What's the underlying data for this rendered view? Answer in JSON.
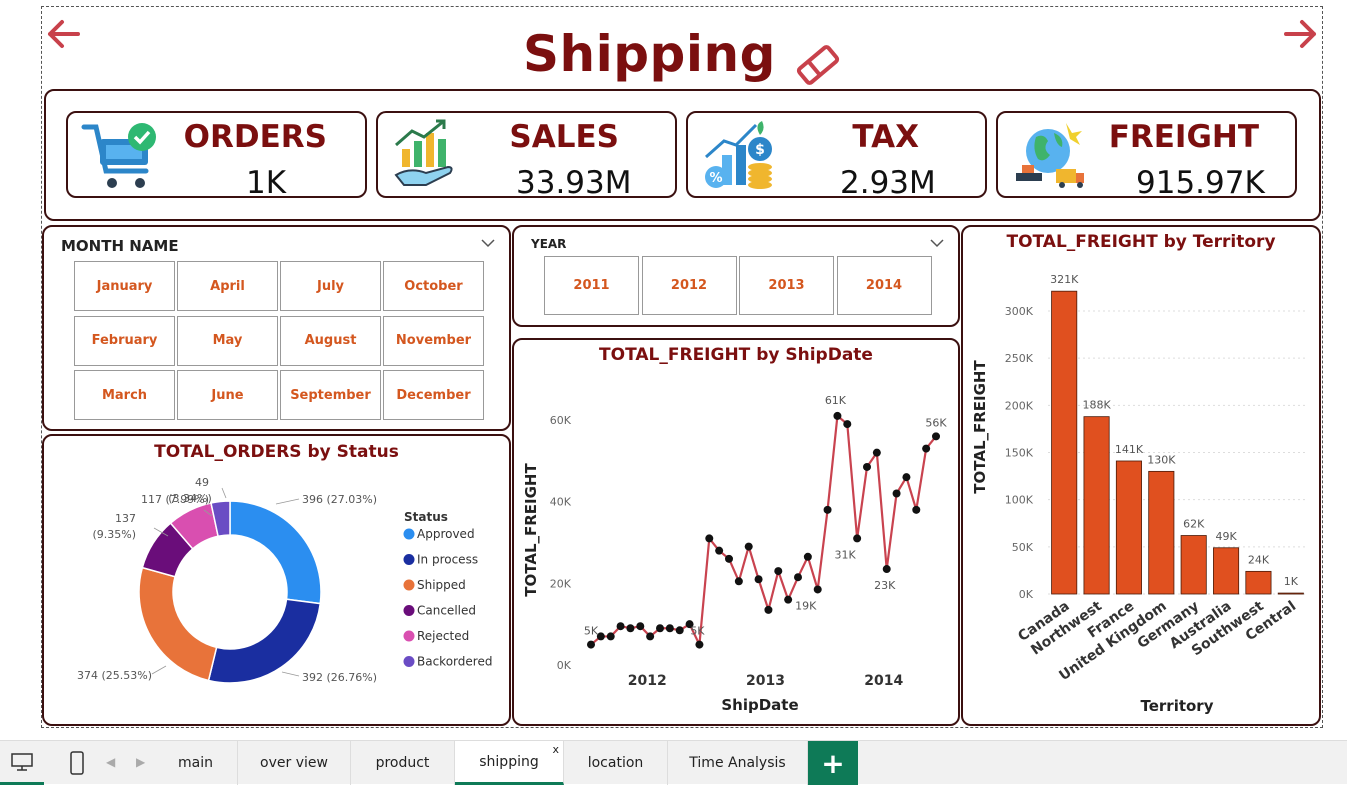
{
  "page": {
    "title": "Shipping"
  },
  "nav": {
    "back_icon": "arrow-left-icon",
    "forward_icon": "arrow-right-icon"
  },
  "kpis": [
    {
      "label": "ORDERS",
      "value": "1K",
      "icon": "shopping-cart-check-icon"
    },
    {
      "label": "SALES",
      "value": "33.93M",
      "icon": "growth-hand-icon"
    },
    {
      "label": "TAX",
      "value": "2.93M",
      "icon": "tax-coins-icon"
    },
    {
      "label": "FREIGHT",
      "value": "915.97K",
      "icon": "global-freight-icon"
    }
  ],
  "month_slicer": {
    "title": "MONTH NAME",
    "months": [
      "January",
      "April",
      "July",
      "October",
      "February",
      "May",
      "August",
      "November",
      "March",
      "June",
      "September",
      "December"
    ]
  },
  "year_slicer": {
    "title": "YEAR",
    "years": [
      "2011",
      "2012",
      "2013",
      "2014"
    ]
  },
  "status_chart": {
    "title": "TOTAL_ORDERS by Status",
    "legend_title": "Status",
    "slice_labels": [
      "396 (27.03%)",
      "392 (26.76%)",
      "374 (25.53%)",
      "137",
      "(9.35%)",
      "117 (7.99%)",
      "49",
      "(3.34%)"
    ]
  },
  "shipdate_chart": {
    "title": "TOTAL_FREIGHT by ShipDate",
    "xlabel": "ShipDate",
    "ylabel": "TOTAL_FREIGHT",
    "point_labels": [
      "5K",
      "5K",
      "61K",
      "31K",
      "19K",
      "23K",
      "56K"
    ]
  },
  "territory_chart": {
    "title": "TOTAL_FREIGHT by Territory",
    "xlabel": "Territory",
    "ylabel": "TOTAL_FREIGHT"
  },
  "chart_data": [
    {
      "type": "pie",
      "title": "TOTAL_ORDERS by Status",
      "donut": true,
      "categories": [
        "Approved",
        "In process",
        "Shipped",
        "Cancelled",
        "Rejected",
        "Backordered"
      ],
      "values": [
        396,
        392,
        374,
        137,
        117,
        49
      ],
      "percent": [
        27.03,
        26.76,
        25.53,
        9.35,
        7.99,
        3.34
      ],
      "colors": [
        "#2b8ef0",
        "#1a2ea0",
        "#e8733a",
        "#6a0d7a",
        "#d94fb0",
        "#6a4cc4"
      ],
      "legend": "right"
    },
    {
      "type": "line",
      "title": "TOTAL_FREIGHT by ShipDate",
      "xlabel": "ShipDate",
      "ylabel": "TOTAL_FREIGHT",
      "x_ticks": [
        "2012",
        "2013",
        "2014"
      ],
      "y_ticks": [
        "0K",
        "20K",
        "40K",
        "60K"
      ],
      "ylim": [
        0,
        65
      ],
      "unit": "K",
      "x": [
        "2011-07",
        "2011-08",
        "2011-09",
        "2011-10",
        "2011-11",
        "2011-12",
        "2012-01",
        "2012-02",
        "2012-03",
        "2012-04",
        "2012-05",
        "2012-06",
        "2012-07",
        "2012-08",
        "2012-09",
        "2012-10",
        "2012-11",
        "2012-12",
        "2013-01",
        "2013-02",
        "2013-03",
        "2013-04",
        "2013-05",
        "2013-06",
        "2013-07",
        "2013-08",
        "2013-09",
        "2013-10",
        "2013-11",
        "2013-12",
        "2014-01",
        "2014-02",
        "2014-03",
        "2014-04",
        "2014-05",
        "2014-06"
      ],
      "series": [
        {
          "values": [
            5,
            7,
            7,
            9.5,
            9,
            9.5,
            7,
            9,
            9,
            8.5,
            10,
            5,
            31,
            28,
            26,
            20.5,
            29,
            21,
            13.5,
            23,
            16,
            21.5,
            26.5,
            18.5,
            38,
            61,
            59,
            31,
            48.5,
            52,
            23.5,
            42,
            46,
            38,
            53,
            56
          ]
        }
      ],
      "color": "#c9434f",
      "grid": false
    },
    {
      "type": "bar",
      "title": "TOTAL_FREIGHT by Territory",
      "xlabel": "Territory",
      "ylabel": "TOTAL_FREIGHT",
      "categories": [
        "Canada",
        "Northwest",
        "France",
        "United Kingdom",
        "Germany",
        "Australia",
        "Southwest",
        "Central"
      ],
      "values": [
        321,
        188,
        141,
        130,
        62,
        49,
        24,
        1
      ],
      "value_labels": [
        "321K",
        "188K",
        "141K",
        "130K",
        "62K",
        "49K",
        "24K",
        "1K"
      ],
      "y_ticks": [
        "0K",
        "50K",
        "100K",
        "150K",
        "200K",
        "250K",
        "300K"
      ],
      "ylim": [
        0,
        330
      ],
      "unit": "K",
      "color": "#e0501f",
      "grid": true
    }
  ],
  "tabs": {
    "items": [
      "main",
      "over view",
      "product",
      "shipping",
      "location",
      "Time Analysis"
    ],
    "active": "shipping",
    "close_label": "x",
    "add_label": "+"
  }
}
